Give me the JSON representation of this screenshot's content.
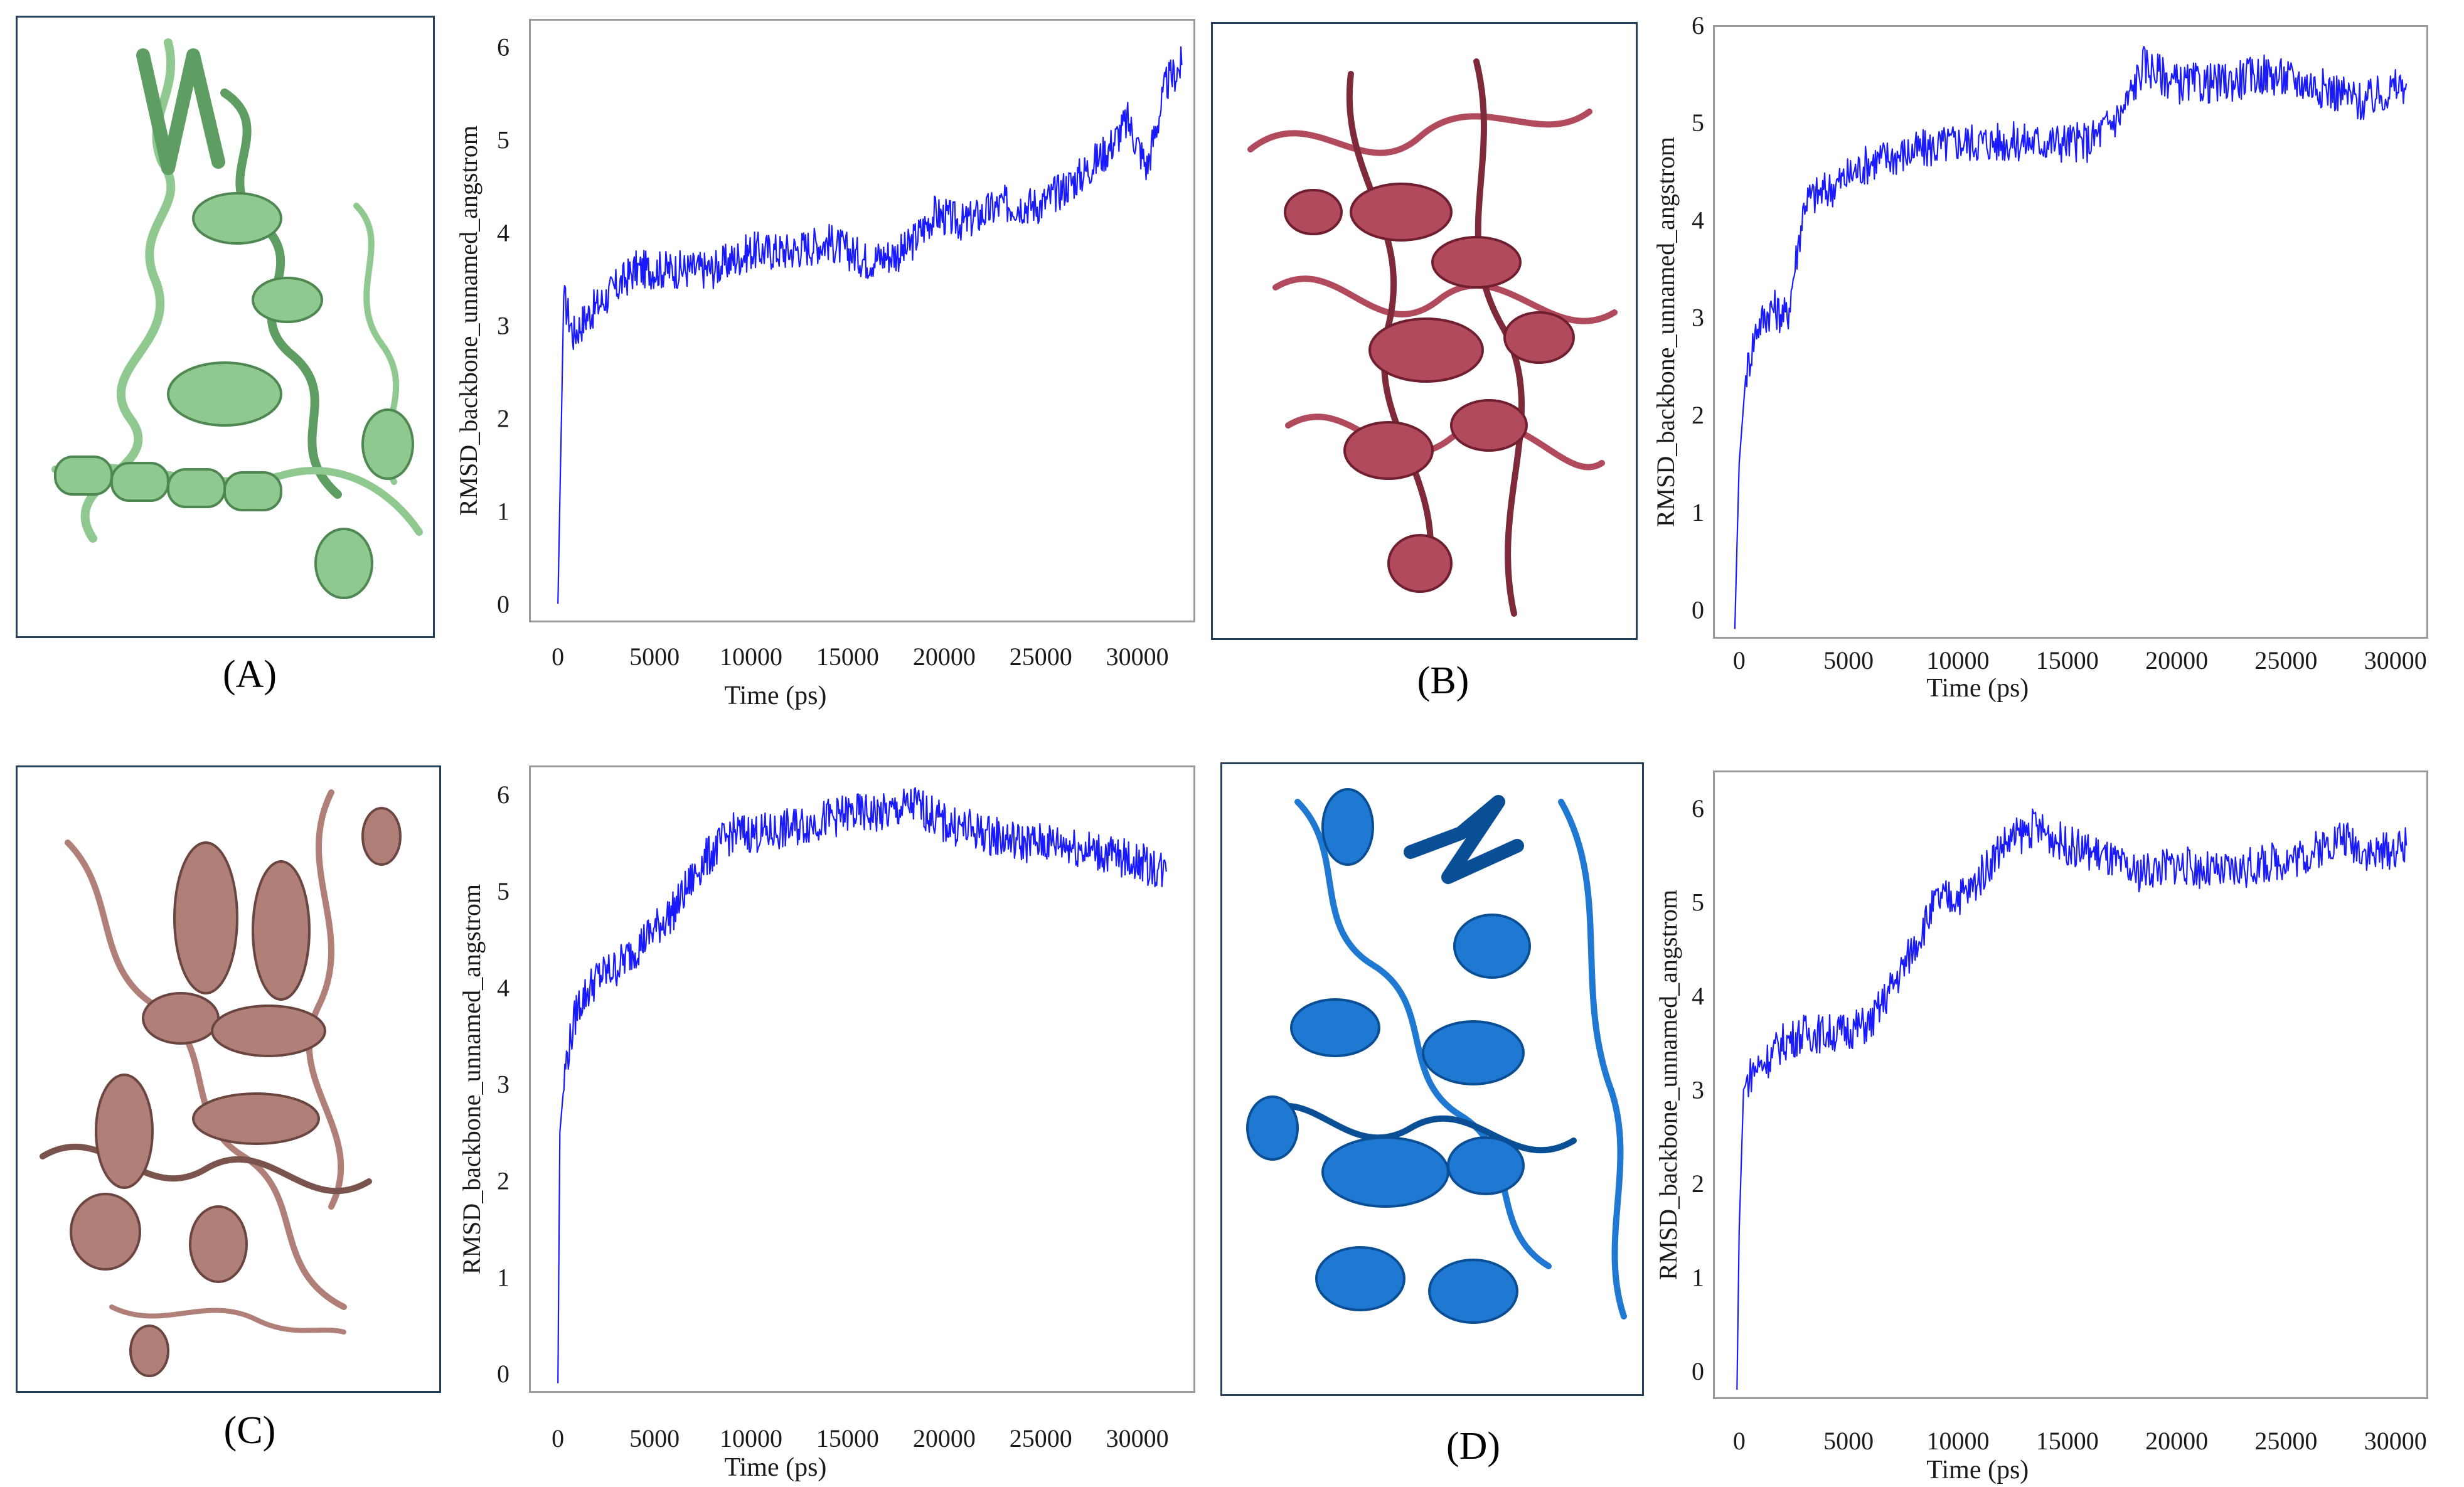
{
  "panel_labels": {
    "A": "(A)",
    "B": "(B)",
    "C": "(C)",
    "D": "(D)"
  },
  "structures": [
    {
      "label": "(A)",
      "color": "#8fc98f",
      "shade": "#5f9e63"
    },
    {
      "label": "(B)",
      "color": "#b24a5e",
      "shade": "#7e2a3b"
    },
    {
      "label": "(C)",
      "color": "#b08078",
      "shade": "#7a534d"
    },
    {
      "label": "(D)",
      "color": "#1f78d1",
      "shade": "#0a4f96"
    }
  ],
  "line_color": "#1a1aff",
  "chart_data": [
    {
      "panel": "A",
      "type": "line",
      "xlabel": "Time (ps)",
      "ylabel": "RMSD_backbone_unnamed_angstrom",
      "xlim": [
        -1500,
        33000
      ],
      "ylim": [
        -0.2,
        6.3
      ],
      "xticks": [
        0,
        5000,
        10000,
        15000,
        20000,
        25000,
        30000
      ],
      "yticks": [
        0,
        1,
        2,
        3,
        4,
        5,
        6
      ],
      "x": [
        0,
        300,
        800,
        1500,
        2500,
        4000,
        6000,
        8000,
        10000,
        12000,
        14000,
        16000,
        18000,
        19500,
        21000,
        23000,
        25000,
        27000,
        28500,
        29500,
        30500,
        31500,
        32300
      ],
      "y": [
        0,
        3.3,
        2.9,
        3.1,
        3.3,
        3.6,
        3.6,
        3.6,
        3.8,
        3.8,
        3.9,
        3.7,
        3.8,
        4.2,
        4.1,
        4.3,
        4.3,
        4.6,
        4.9,
        5.2,
        4.7,
        5.6,
        5.8
      ]
    },
    {
      "panel": "B",
      "type": "line",
      "xlabel": "Time (ps)",
      "ylabel": "RMSD_backbone_unnamed_angstrom",
      "xlim": [
        -1200,
        31500
      ],
      "ylim": [
        -0.3,
        6.0
      ],
      "xticks": [
        0,
        5000,
        10000,
        15000,
        20000,
        25000,
        30000
      ],
      "yticks": [
        0,
        1,
        2,
        3,
        4,
        5,
        6
      ],
      "x": [
        -200,
        0,
        300,
        800,
        1500,
        2200,
        3000,
        4000,
        6000,
        8000,
        10000,
        12000,
        14000,
        16000,
        17500,
        18500,
        20000,
        22000,
        24000,
        26000,
        27500,
        28500,
        30500
      ],
      "y": [
        -0.2,
        1.5,
        2.4,
        2.9,
        3.1,
        3.0,
        4.2,
        4.3,
        4.6,
        4.7,
        4.8,
        4.8,
        4.8,
        4.8,
        5.1,
        5.6,
        5.4,
        5.4,
        5.5,
        5.4,
        5.3,
        5.2,
        5.4
      ]
    },
    {
      "panel": "C",
      "type": "line",
      "xlabel": "Time (ps)",
      "ylabel": "RMSD_backbone_unnamed_angstrom",
      "xlim": [
        -1500,
        33000
      ],
      "ylim": [
        -0.2,
        6.3
      ],
      "xticks": [
        0,
        5000,
        10000,
        15000,
        20000,
        25000,
        30000
      ],
      "yticks": [
        0,
        1,
        2,
        3,
        4,
        5,
        6
      ],
      "x": [
        0,
        100,
        400,
        1000,
        2000,
        3000,
        4500,
        6000,
        7500,
        9000,
        11000,
        13000,
        15000,
        17000,
        18500,
        20000,
        22000,
        24000,
        26000,
        28000,
        30000,
        31500
      ],
      "y": [
        -0.1,
        2.5,
        3.2,
        3.8,
        4.1,
        4.2,
        4.5,
        4.8,
        5.3,
        5.6,
        5.6,
        5.7,
        5.8,
        5.8,
        5.9,
        5.7,
        5.6,
        5.5,
        5.5,
        5.4,
        5.3,
        5.2
      ]
    },
    {
      "panel": "D",
      "type": "line",
      "xlabel": "Time (ps)",
      "ylabel": "RMSD_backbone_unnamed_angstrom",
      "xlim": [
        -1200,
        31500
      ],
      "ylim": [
        -0.3,
        6.4
      ],
      "xticks": [
        0,
        5000,
        10000,
        15000,
        20000,
        25000,
        30000
      ],
      "yticks": [
        0,
        1,
        2,
        3,
        4,
        5,
        6
      ],
      "x": [
        -100,
        0,
        200,
        600,
        1200,
        2000,
        3000,
        4500,
        6000,
        7500,
        9000,
        10500,
        12000,
        13500,
        15000,
        16500,
        18000,
        20000,
        22000,
        24000,
        26000,
        27500,
        29000,
        30500
      ],
      "y": [
        -0.2,
        1.5,
        3.0,
        3.2,
        3.3,
        3.5,
        3.6,
        3.6,
        3.7,
        4.3,
        5.0,
        5.1,
        5.6,
        5.8,
        5.6,
        5.5,
        5.3,
        5.4,
        5.3,
        5.4,
        5.5,
        5.7,
        5.5,
        5.6
      ]
    }
  ]
}
